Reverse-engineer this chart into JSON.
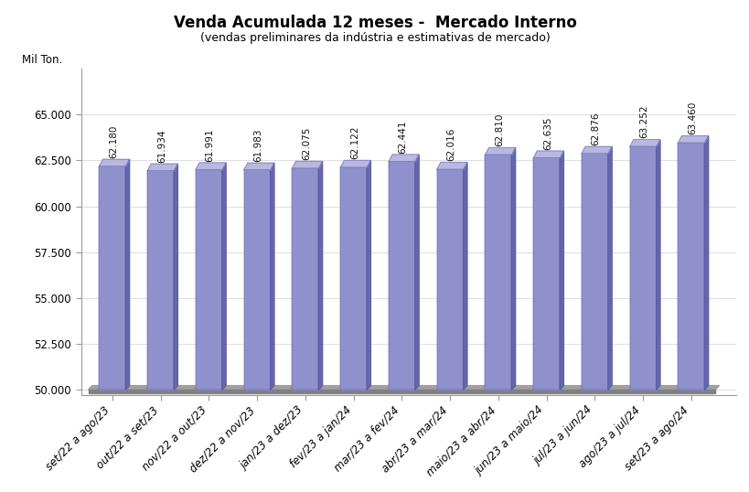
{
  "title": "Venda Acumulada 12 meses -  Mercado Interno",
  "subtitle": "(vendas preliminares da indústria e estimativas de mercado)",
  "ylabel": "Mil Ton.",
  "categories": [
    "set/22 a ago/23",
    "out/22 a set/23",
    "nov/22 a out/23",
    "dez/22 a nov/23",
    "jan/23 a dez/23",
    "fev/23 a jan/24",
    "mar/23 a fev/24",
    "abr/23 a mar/24",
    "maio/23 a abr/24",
    "jun/23 a maio/24",
    "jul/23 a jun/24",
    "ago/23 a jul/24",
    "set/23 a ago/24"
  ],
  "values": [
    62180,
    61934,
    61991,
    61983,
    62075,
    62122,
    62441,
    62016,
    62810,
    62635,
    62876,
    63252,
    63460
  ],
  "bar_color_face": "#9090cc",
  "bar_color_side": "#6666aa",
  "bar_color_top": "#b8b8e0",
  "floor_color": "#a0a0a0",
  "floor_side_color": "#808080",
  "ylim_min": 50000,
  "ylim_max": 67500,
  "yticks": [
    50000,
    52500,
    55000,
    57500,
    60000,
    62500,
    65000
  ],
  "background_color": "#ffffff",
  "plot_bg_color": "#ffffff",
  "grid_color": "#dddddd",
  "title_fontsize": 12,
  "subtitle_fontsize": 9,
  "tick_fontsize": 8.5,
  "label_fontsize": 7.5
}
